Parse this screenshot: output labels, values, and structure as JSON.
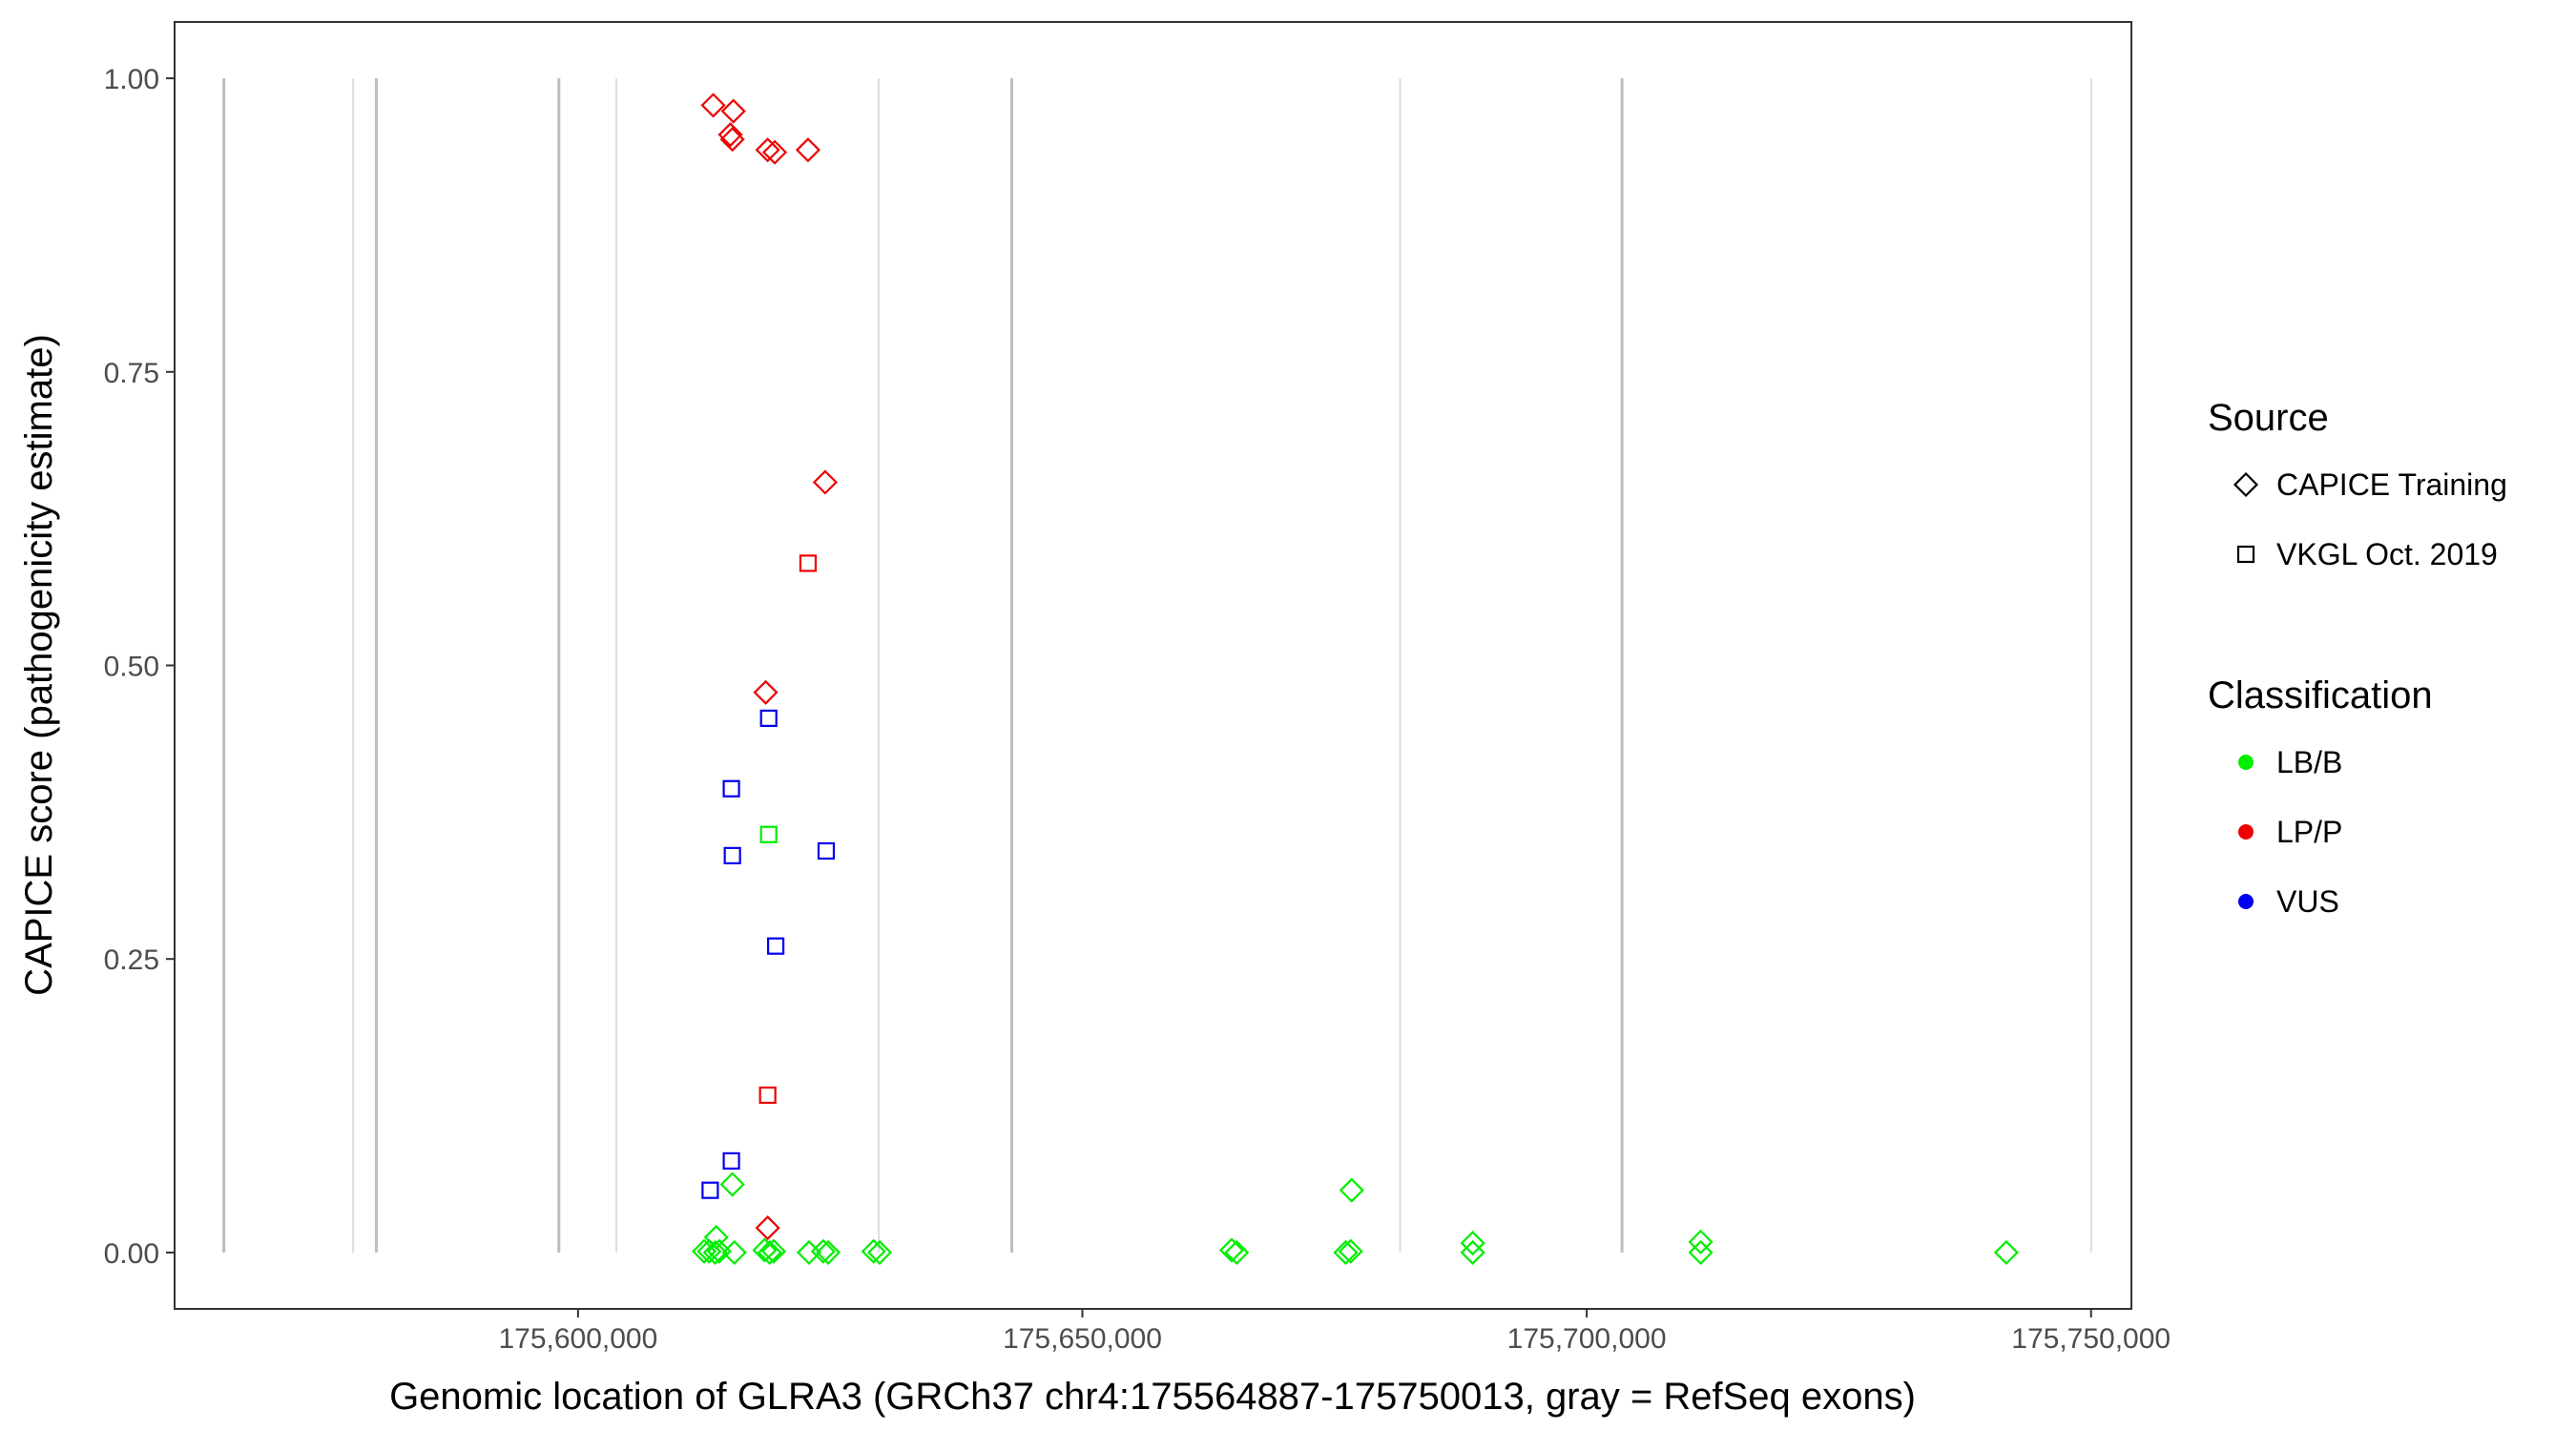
{
  "chart_data": {
    "type": "scatter",
    "xlabel": "Genomic location of GLRA3 (GRCh37 chr4:175564887-175750013, gray = RefSeq exons)",
    "ylabel": "CAPICE score (pathogenicity estimate)",
    "xlim": [
      175560000,
      175754000
    ],
    "ylim": [
      -0.048,
      1.048
    ],
    "x_ticks": [
      175600000,
      175650000,
      175700000,
      175750000
    ],
    "x_tick_labels": [
      "175,600,000",
      "175,650,000",
      "175,700,000",
      "175,750,000"
    ],
    "y_ticks": [
      0.0,
      0.25,
      0.5,
      0.75,
      1.0
    ],
    "y_tick_labels": [
      "0.00",
      "0.25",
      "0.50",
      "0.75",
      "1.00"
    ],
    "grid": false,
    "exon_positions": [
      175564887,
      175577700,
      175580000,
      175598100,
      175603800,
      175629800,
      175643000,
      175681500,
      175703500,
      175750013
    ],
    "exon_shades": [
      "dark",
      "light",
      "dark",
      "dark",
      "light",
      "light",
      "dark",
      "light",
      "dark",
      "light"
    ],
    "legends": {
      "source": {
        "title": "Source",
        "items": [
          {
            "label": "CAPICE Training",
            "shape": "diamond"
          },
          {
            "label": "VKGL Oct. 2019",
            "shape": "square"
          }
        ]
      },
      "classification": {
        "title": "Classification",
        "items": [
          {
            "label": "LB/B",
            "color": "#00ee00"
          },
          {
            "label": "LP/P",
            "color": "#ee0000"
          },
          {
            "label": "VUS",
            "color": "#0000ee"
          }
        ]
      }
    },
    "legend_position": "right",
    "series": [
      {
        "source": "CAPICE Training",
        "classification": "LP/P",
        "points": [
          [
            175613400,
            0.977
          ],
          [
            175615400,
            0.972
          ],
          [
            175615100,
            0.952
          ],
          [
            175615300,
            0.948
          ],
          [
            175618800,
            0.939
          ],
          [
            175619500,
            0.937
          ],
          [
            175622800,
            0.939
          ],
          [
            175624500,
            0.656
          ],
          [
            175618600,
            0.477
          ],
          [
            175618800,
            0.021
          ]
        ]
      },
      {
        "source": "VKGL Oct. 2019",
        "classification": "LP/P",
        "points": [
          [
            175622800,
            0.587
          ],
          [
            175618800,
            0.134
          ]
        ]
      },
      {
        "source": "VKGL Oct. 2019",
        "classification": "VUS",
        "points": [
          [
            175618900,
            0.455
          ],
          [
            175615200,
            0.395
          ],
          [
            175615300,
            0.338
          ],
          [
            175624600,
            0.342
          ],
          [
            175619600,
            0.261
          ],
          [
            175615200,
            0.078
          ],
          [
            175613100,
            0.053
          ]
        ]
      },
      {
        "source": "VKGL Oct. 2019",
        "classification": "LB/B",
        "points": [
          [
            175618900,
            0.356
          ]
        ]
      },
      {
        "source": "CAPICE Training",
        "classification": "LB/B",
        "points": [
          [
            175615300,
            0.058
          ],
          [
            175613700,
            0.013
          ],
          [
            175612500,
            0.001
          ],
          [
            175613000,
            0.001
          ],
          [
            175613600,
            0.0
          ],
          [
            175614000,
            0.001
          ],
          [
            175615500,
            0.0
          ],
          [
            175618500,
            0.002
          ],
          [
            175619000,
            0.0
          ],
          [
            175619400,
            0.001
          ],
          [
            175622900,
            0.0
          ],
          [
            175624300,
            0.001
          ],
          [
            175624800,
            0.0
          ],
          [
            175629300,
            0.001
          ],
          [
            175629900,
            0.0
          ],
          [
            175664800,
            0.002
          ],
          [
            175665300,
            0.0
          ],
          [
            175676100,
            0.0
          ],
          [
            175676600,
            0.001
          ],
          [
            175676700,
            0.053
          ],
          [
            175688700,
            0.008
          ],
          [
            175688700,
            0.0
          ],
          [
            175711300,
            0.009
          ],
          [
            175711300,
            0.0
          ],
          [
            175741600,
            0.0
          ]
        ]
      }
    ]
  }
}
